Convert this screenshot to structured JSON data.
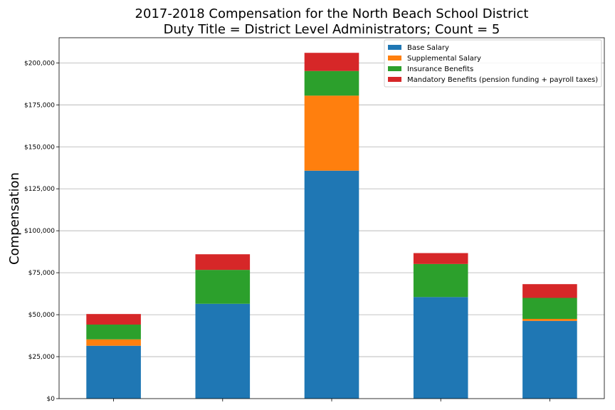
{
  "chart_data": {
    "type": "bar",
    "stacked": true,
    "title": "2017-2018 Compensation for the North Beach School District",
    "subtitle": "Duty Title = District Level Administrators; Count = 5",
    "xlabel": "",
    "ylabel": "Compensation",
    "ylim": [
      0,
      215000
    ],
    "yticks": [
      0,
      25000,
      50000,
      75000,
      100000,
      125000,
      150000,
      175000,
      200000
    ],
    "ytick_labels": [
      "$0",
      "$25,000",
      "$50,000",
      "$75,000",
      "$100,000",
      "$125,000",
      "$150,000",
      "$175,000",
      "$200,000"
    ],
    "categories": [
      "",
      "",
      "",
      "",
      ""
    ],
    "grid": "y",
    "legend_position": "top-right",
    "series": [
      {
        "name": "Base Salary",
        "color": "#1f77b4",
        "values": [
          31500,
          56500,
          135800,
          60500,
          46300
        ]
      },
      {
        "name": "Supplemental Salary",
        "color": "#ff7f0e",
        "values": [
          3800,
          0,
          44700,
          0,
          1200
        ]
      },
      {
        "name": "Insurance Benefits",
        "color": "#2ca02c",
        "values": [
          8800,
          20200,
          14700,
          19700,
          12500
        ]
      },
      {
        "name": "Mandatory Benefits (pension funding + payroll taxes)",
        "color": "#d62728",
        "values": [
          6300,
          9300,
          10800,
          6500,
          8200
        ]
      }
    ]
  }
}
